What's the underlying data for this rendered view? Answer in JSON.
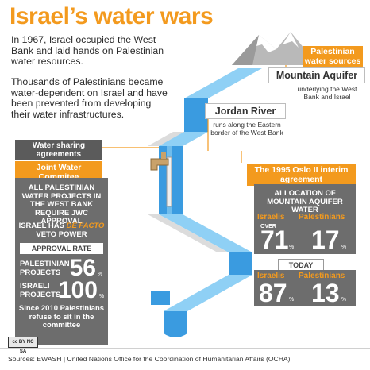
{
  "title": "Israel’s water wars",
  "intro": {
    "p1": "In 1967, Israel occupied the West Bank and laid hands on Palestinian water resources.",
    "p2": "Thousands of Palestinians became water-dependent on Israel and have been prevented from developing their water infrastructures."
  },
  "water_sources": {
    "header": "Palestinian water sources",
    "aquifer_title": "Mountain Aquifer",
    "aquifer_desc": "underlying the West Bank and Israel",
    "river_title": "Jordan River",
    "river_desc": "runs along the Eastern border of the West Bank"
  },
  "agreements": {
    "header": "Water sharing agreements",
    "jwc_title": "Joint Water Commitee",
    "jwc_text": "ALL PALESTINIAN WATER PROJECTS IN THE WEST BANK REQUIRE JWC APPROVAL",
    "veto_pre": "ISRAEL HAS",
    "veto_em": "DE FACTO",
    "veto_post": "VETO POWER",
    "approval_header": "APPROVAL RATE",
    "pal_label": "PALESTINIAN PROJECTS",
    "pal_value": "56",
    "isr_label": "ISRAELI PROJECTS",
    "isr_value": "100",
    "pct": "%",
    "refuse_text": "Since 2010 Palestinians refuse to sit in the committee"
  },
  "oslo": {
    "header": "The 1995 Oslo II interim agreement",
    "alloc_title": "ALLOCATION OF MOUNTAIN AQUIFER WATER",
    "israelis": "Israelis",
    "palestinians": "Palestinians",
    "over": "OVER",
    "isr_1995": "71",
    "pal_1995": "17",
    "today_label": "TODAY",
    "isr_today": "87",
    "pal_today": "13",
    "pct": "%"
  },
  "footer": {
    "license": "cc BY NC SA",
    "source": "Sources: EWASH  |  United Nations Office for the Coordination of Humanitarian Affairs (OCHA)"
  },
  "colors": {
    "accent": "#f39a1e",
    "water": "#3a9be0",
    "water_light": "#8fd0f5",
    "panel": "#6d6d6d"
  }
}
